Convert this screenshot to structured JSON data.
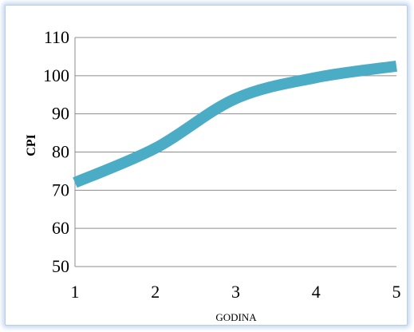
{
  "chart_data": {
    "type": "line",
    "title": "",
    "xlabel": "GODINA",
    "ylabel": "CPI",
    "x": [
      1,
      2,
      3,
      4,
      5
    ],
    "xlim": [
      1,
      5
    ],
    "ylim": [
      50,
      110
    ],
    "xticks": [
      "1",
      "2",
      "3",
      "4",
      "5"
    ],
    "yticks": [
      "50",
      "60",
      "70",
      "80",
      "90",
      "100",
      "110"
    ],
    "grid": "horizontal",
    "legend": "none",
    "series": [
      {
        "color": "#4bacc6",
        "values": [
          72,
          81,
          94,
          99.5,
          102.5
        ]
      }
    ]
  }
}
